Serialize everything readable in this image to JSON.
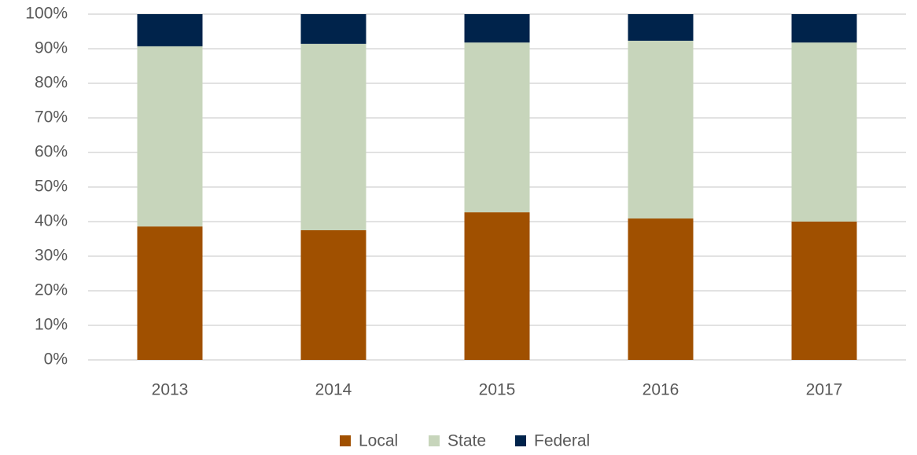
{
  "chart_data": {
    "type": "stacked_bar",
    "categories": [
      "2013",
      "2014",
      "2015",
      "2016",
      "2017"
    ],
    "series": [
      {
        "name": "Local",
        "color": "#a05000",
        "values": [
          38.6,
          37.5,
          42.7,
          40.9,
          40.0
        ]
      },
      {
        "name": "State",
        "color": "#c7d5bb",
        "values": [
          52.1,
          53.9,
          49.1,
          51.4,
          51.8
        ]
      },
      {
        "name": "Federal",
        "color": "#00234b",
        "values": [
          9.3,
          8.6,
          8.2,
          7.7,
          8.2
        ]
      }
    ],
    "ylim": [
      0,
      100
    ],
    "yticks": [
      {
        "value": 0,
        "label": "0%"
      },
      {
        "value": 10,
        "label": "10%"
      },
      {
        "value": 20,
        "label": "20%"
      },
      {
        "value": 30,
        "label": "30%"
      },
      {
        "value": 40,
        "label": "40%"
      },
      {
        "value": 50,
        "label": "50%"
      },
      {
        "value": 60,
        "label": "60%"
      },
      {
        "value": 70,
        "label": "70%"
      },
      {
        "value": 80,
        "label": "80%"
      },
      {
        "value": 90,
        "label": "90%"
      },
      {
        "value": 100,
        "label": "100%"
      }
    ],
    "grid": true,
    "legend": "bottom"
  }
}
